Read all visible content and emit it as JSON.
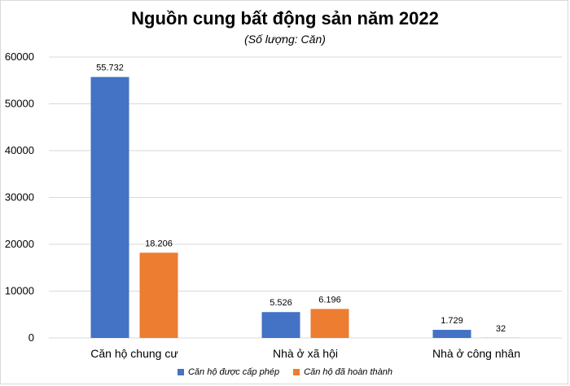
{
  "chart_data": {
    "type": "bar",
    "title": "Nguồn cung bất động sản năm 2022",
    "subtitle": "(Số lượng: Căn)",
    "categories": [
      "Căn hộ chung cư",
      "Nhà ở xã hội",
      "Nhà ở công nhân"
    ],
    "series": [
      {
        "name": "Căn hộ được cấp phép",
        "color": "#4472c4",
        "values": [
          55732,
          5526,
          1729
        ],
        "labels": [
          "55.732",
          "5.526",
          "1.729"
        ]
      },
      {
        "name": "Căn hộ đã hoàn thành",
        "color": "#ed7d31",
        "values": [
          18206,
          6196,
          32
        ],
        "labels": [
          "18.206",
          "6.196",
          "32"
        ]
      }
    ],
    "ylim": [
      0,
      60000
    ],
    "yticks": [
      0,
      10000,
      20000,
      30000,
      40000,
      50000,
      60000
    ],
    "ytick_labels": [
      "0",
      "10000",
      "20000",
      "30000",
      "40000",
      "50000",
      "60000"
    ],
    "grid": true,
    "legend_position": "bottom"
  }
}
